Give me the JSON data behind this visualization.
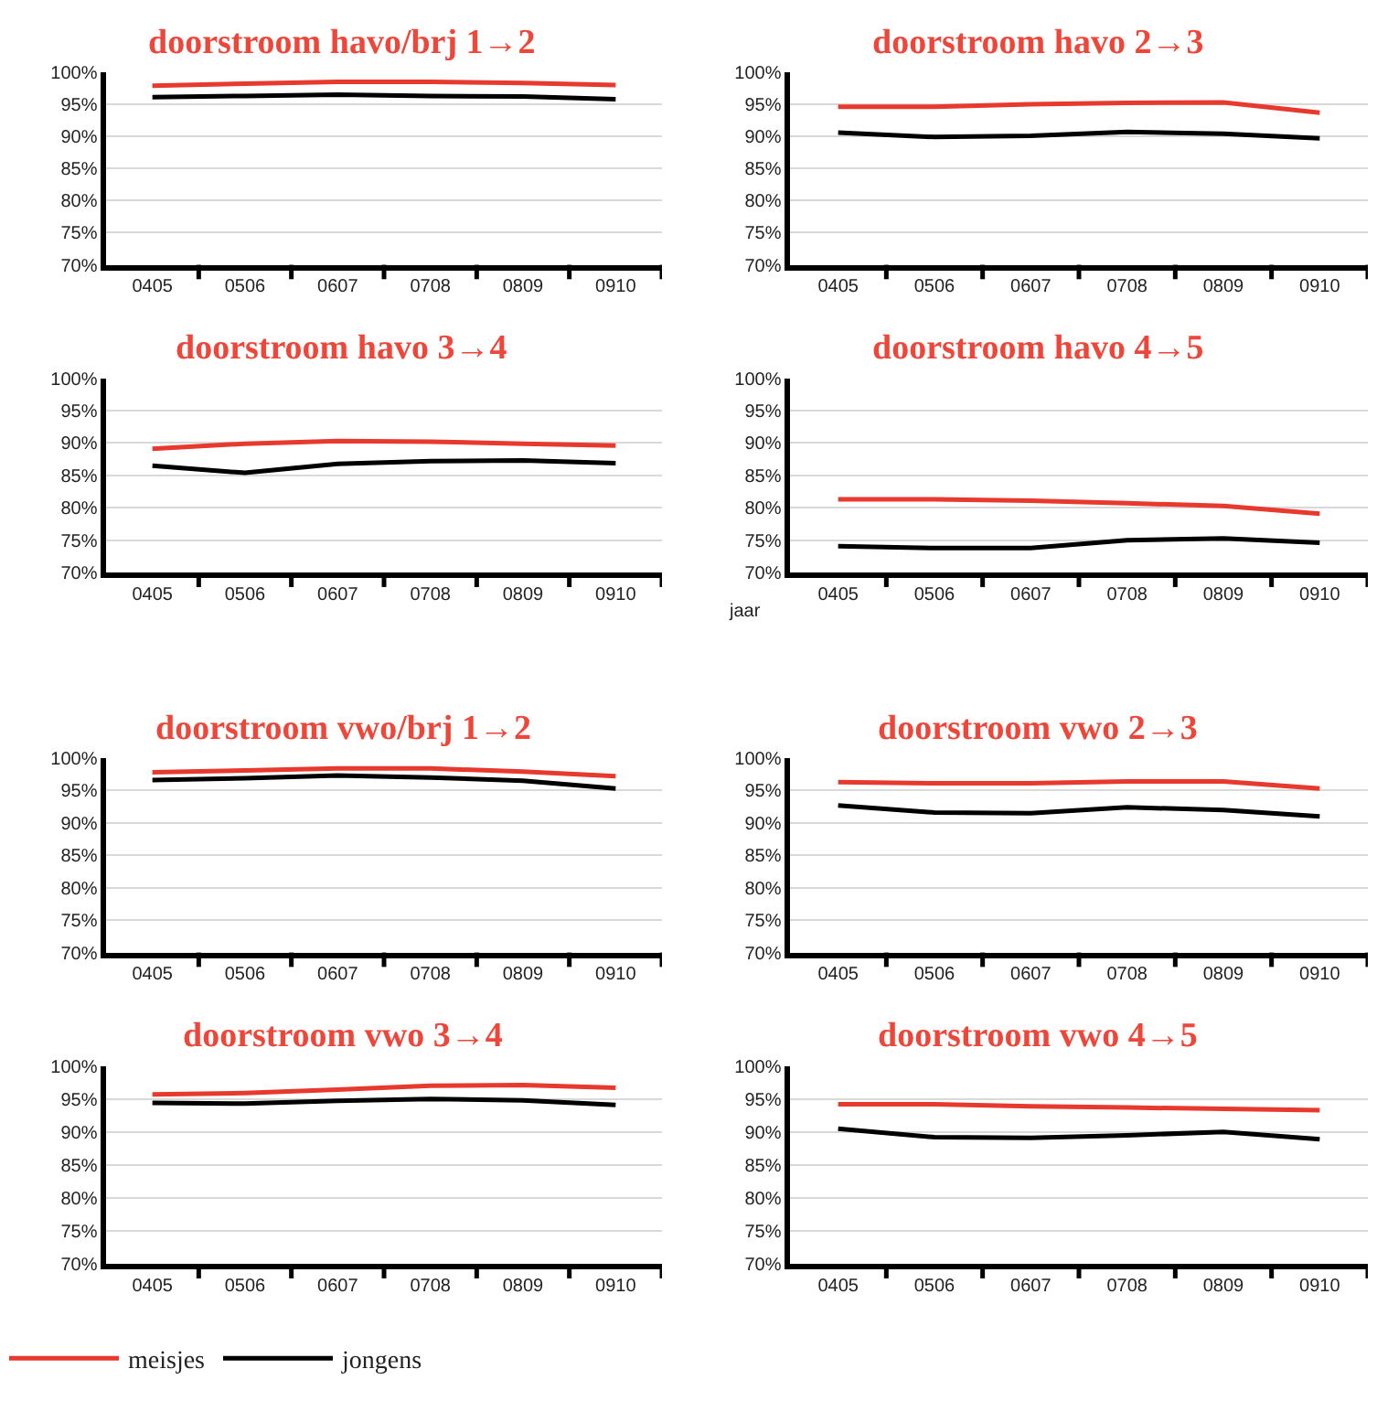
{
  "chart_data": [
    {
      "type": "line",
      "title": "doorstroom havo/brj 1→2",
      "categories": [
        "0405",
        "0506",
        "0607",
        "0708",
        "0809",
        "0910"
      ],
      "series": [
        {
          "name": "meisjes",
          "color": "#e8392f",
          "values": [
            97.9,
            98.2,
            98.5,
            98.5,
            98.3,
            98.0
          ]
        },
        {
          "name": "jongens",
          "color": "#000000",
          "values": [
            96.1,
            96.3,
            96.5,
            96.3,
            96.2,
            95.8
          ]
        }
      ],
      "ylim": [
        70,
        100
      ],
      "yticks": [
        {
          "value": 70,
          "label": "70%"
        },
        {
          "value": 75,
          "label": "75%"
        },
        {
          "value": 80,
          "label": "80%"
        },
        {
          "value": 85,
          "label": "85%"
        },
        {
          "value": 90,
          "label": "90%"
        },
        {
          "value": 95,
          "label": "95%"
        },
        {
          "value": 100,
          "label": "100%"
        }
      ],
      "grid": "y",
      "legend": "bottom left"
    },
    {
      "type": "line",
      "title": "doorstroom havo 2→3",
      "categories": [
        "0405",
        "0506",
        "0607",
        "0708",
        "0809",
        "0910"
      ],
      "series": [
        {
          "name": "meisjes",
          "color": "#e8392f",
          "values": [
            94.6,
            94.6,
            95.0,
            95.2,
            95.3,
            93.7
          ]
        },
        {
          "name": "jongens",
          "color": "#000000",
          "values": [
            90.6,
            89.9,
            90.1,
            90.7,
            90.4,
            89.7
          ]
        }
      ],
      "ylim": [
        70,
        100
      ],
      "yticks": [
        {
          "value": 70,
          "label": "70%"
        },
        {
          "value": 75,
          "label": "75%"
        },
        {
          "value": 80,
          "label": "80%"
        },
        {
          "value": 85,
          "label": "85%"
        },
        {
          "value": 90,
          "label": "90%"
        },
        {
          "value": 95,
          "label": "95%"
        },
        {
          "value": 100,
          "label": "100%"
        }
      ],
      "grid": "y",
      "legend": "bottom left"
    },
    {
      "type": "line",
      "title": "doorstroom havo 3→4",
      "categories": [
        "0405",
        "0506",
        "0607",
        "0708",
        "0809",
        "0910"
      ],
      "series": [
        {
          "name": "meisjes",
          "color": "#e8392f",
          "values": [
            89.1,
            89.9,
            90.3,
            90.2,
            89.9,
            89.6
          ]
        },
        {
          "name": "jongens",
          "color": "#000000",
          "values": [
            86.5,
            85.4,
            86.8,
            87.2,
            87.3,
            86.9
          ]
        }
      ],
      "ylim": [
        70,
        100
      ],
      "yticks": [
        {
          "value": 70,
          "label": "70%"
        },
        {
          "value": 75,
          "label": "75%"
        },
        {
          "value": 80,
          "label": "80%"
        },
        {
          "value": 85,
          "label": "85%"
        },
        {
          "value": 90,
          "label": "90%"
        },
        {
          "value": 95,
          "label": "95%"
        },
        {
          "value": 100,
          "label": "100%"
        }
      ],
      "grid": "y",
      "legend": "bottom left"
    },
    {
      "type": "line",
      "title": "doorstroom havo 4→5",
      "xlabel": "jaar",
      "categories": [
        "0405",
        "0506",
        "0607",
        "0708",
        "0809",
        "0910"
      ],
      "series": [
        {
          "name": "meisjes",
          "color": "#e8392f",
          "values": [
            81.3,
            81.3,
            81.1,
            80.7,
            80.3,
            79.1
          ]
        },
        {
          "name": "jongens",
          "color": "#000000",
          "values": [
            74.1,
            73.8,
            73.8,
            75.0,
            75.3,
            74.6
          ]
        }
      ],
      "ylim": [
        70,
        100
      ],
      "yticks": [
        {
          "value": 70,
          "label": "70%"
        },
        {
          "value": 75,
          "label": "75%"
        },
        {
          "value": 80,
          "label": "80%"
        },
        {
          "value": 85,
          "label": "85%"
        },
        {
          "value": 90,
          "label": "90%"
        },
        {
          "value": 95,
          "label": "95%"
        },
        {
          "value": 100,
          "label": "100%"
        }
      ],
      "grid": "y",
      "legend": "bottom left"
    },
    {
      "type": "line",
      "title": "doorstroom vwo/brj 1→2",
      "categories": [
        "0405",
        "0506",
        "0607",
        "0708",
        "0809",
        "0910"
      ],
      "series": [
        {
          "name": "meisjes",
          "color": "#e8392f",
          "values": [
            97.8,
            98.1,
            98.4,
            98.4,
            97.9,
            97.2
          ]
        },
        {
          "name": "jongens",
          "color": "#000000",
          "values": [
            96.6,
            96.9,
            97.3,
            97.0,
            96.5,
            95.3
          ]
        }
      ],
      "ylim": [
        70,
        100
      ],
      "yticks": [
        {
          "value": 70,
          "label": "70%"
        },
        {
          "value": 75,
          "label": "75%"
        },
        {
          "value": 80,
          "label": "80%"
        },
        {
          "value": 85,
          "label": "85%"
        },
        {
          "value": 90,
          "label": "90%"
        },
        {
          "value": 95,
          "label": "95%"
        },
        {
          "value": 100,
          "label": "100%"
        }
      ],
      "grid": "y",
      "legend": "bottom left"
    },
    {
      "type": "line",
      "title": "doorstroom vwo 2→3",
      "categories": [
        "0405",
        "0506",
        "0607",
        "0708",
        "0809",
        "0910"
      ],
      "series": [
        {
          "name": "meisjes",
          "color": "#e8392f",
          "values": [
            96.3,
            96.1,
            96.1,
            96.4,
            96.4,
            95.3
          ]
        },
        {
          "name": "jongens",
          "color": "#000000",
          "values": [
            92.7,
            91.6,
            91.5,
            92.4,
            92.0,
            91.0
          ]
        }
      ],
      "ylim": [
        70,
        100
      ],
      "yticks": [
        {
          "value": 70,
          "label": "70%"
        },
        {
          "value": 75,
          "label": "75%"
        },
        {
          "value": 80,
          "label": "80%"
        },
        {
          "value": 85,
          "label": "85%"
        },
        {
          "value": 90,
          "label": "90%"
        },
        {
          "value": 95,
          "label": "95%"
        },
        {
          "value": 100,
          "label": "100%"
        }
      ],
      "grid": "y",
      "legend": "bottom left"
    },
    {
      "type": "line",
      "title": "doorstroom vwo 3→4",
      "categories": [
        "0405",
        "0506",
        "0607",
        "0708",
        "0809",
        "0910"
      ],
      "series": [
        {
          "name": "meisjes",
          "color": "#e8392f",
          "values": [
            95.7,
            95.9,
            96.4,
            97.0,
            97.1,
            96.7
          ]
        },
        {
          "name": "jongens",
          "color": "#000000",
          "values": [
            94.4,
            94.3,
            94.7,
            95.0,
            94.8,
            94.1
          ]
        }
      ],
      "ylim": [
        70,
        100
      ],
      "yticks": [
        {
          "value": 70,
          "label": "70%"
        },
        {
          "value": 75,
          "label": "75%"
        },
        {
          "value": 80,
          "label": "80%"
        },
        {
          "value": 85,
          "label": "85%"
        },
        {
          "value": 90,
          "label": "90%"
        },
        {
          "value": 95,
          "label": "95%"
        },
        {
          "value": 100,
          "label": "100%"
        }
      ],
      "grid": "y",
      "legend": "bottom left"
    },
    {
      "type": "line",
      "title": "doorstroom vwo 4→5",
      "categories": [
        "0405",
        "0506",
        "0607",
        "0708",
        "0809",
        "0910"
      ],
      "series": [
        {
          "name": "meisjes",
          "color": "#e8392f",
          "values": [
            94.2,
            94.2,
            93.9,
            93.7,
            93.5,
            93.3
          ]
        },
        {
          "name": "jongens",
          "color": "#000000",
          "values": [
            90.5,
            89.2,
            89.1,
            89.5,
            90.0,
            88.9
          ]
        }
      ],
      "ylim": [
        70,
        100
      ],
      "yticks": [
        {
          "value": 70,
          "label": "70%"
        },
        {
          "value": 75,
          "label": "75%"
        },
        {
          "value": 80,
          "label": "80%"
        },
        {
          "value": 85,
          "label": "85%"
        },
        {
          "value": 90,
          "label": "90%"
        },
        {
          "value": 95,
          "label": "95%"
        },
        {
          "value": 100,
          "label": "100%"
        }
      ],
      "grid": "y",
      "legend": "bottom left"
    }
  ]
}
